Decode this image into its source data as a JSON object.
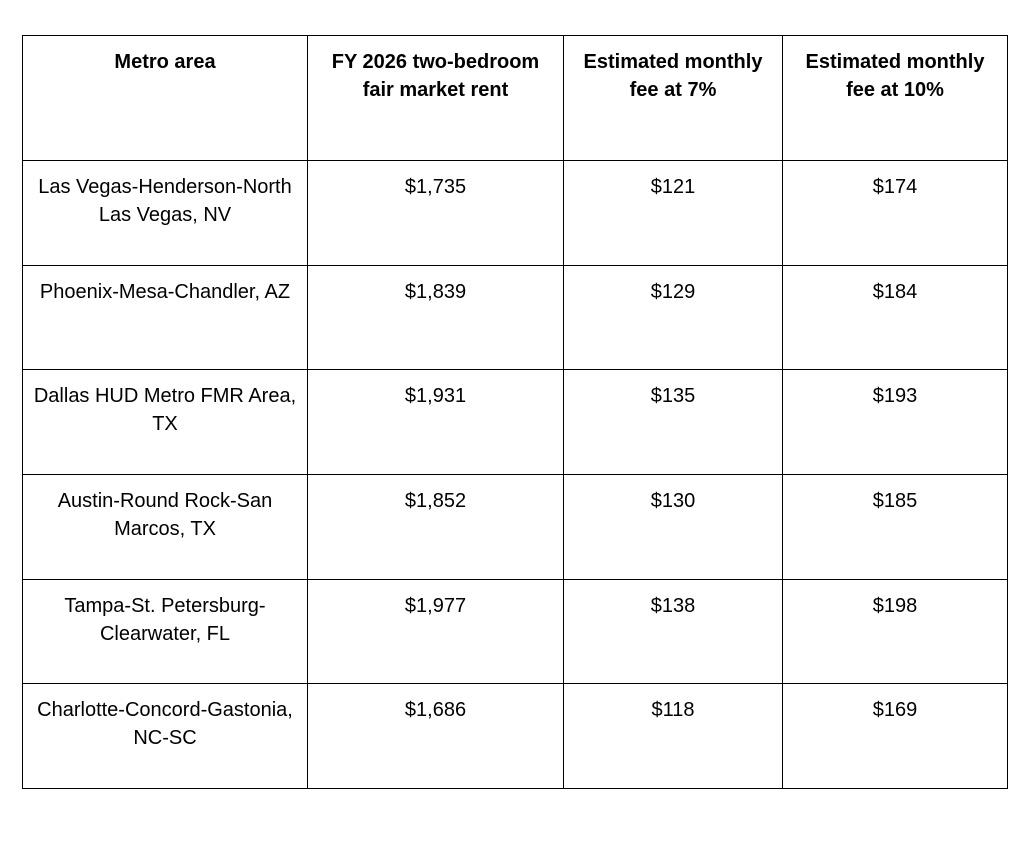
{
  "table": {
    "header": [
      "Metro area",
      "FY 2026 two-bedroom fair market rent",
      "Estimated monthly fee at 7%",
      "Estimated monthly fee at 10%"
    ],
    "rows": [
      [
        "Las Vegas-Henderson-North Las Vegas, NV",
        "$1,735",
        "$121",
        "$174"
      ],
      [
        "Phoenix-Mesa-Chandler, AZ",
        "$1,839",
        "$129",
        "$184"
      ],
      [
        "Dallas HUD Metro FMR Area, TX",
        "$1,931",
        "$135",
        "$193"
      ],
      [
        "Austin-Round Rock-San Marcos, TX",
        "$1,852",
        "$130",
        "$185"
      ],
      [
        "Tampa-St. Petersburg-Clearwater, FL",
        "$1,977",
        "$138",
        "$198"
      ],
      [
        "Charlotte-Concord-Gastonia, NC-SC",
        "$1,686",
        "$118",
        "$169"
      ]
    ]
  }
}
